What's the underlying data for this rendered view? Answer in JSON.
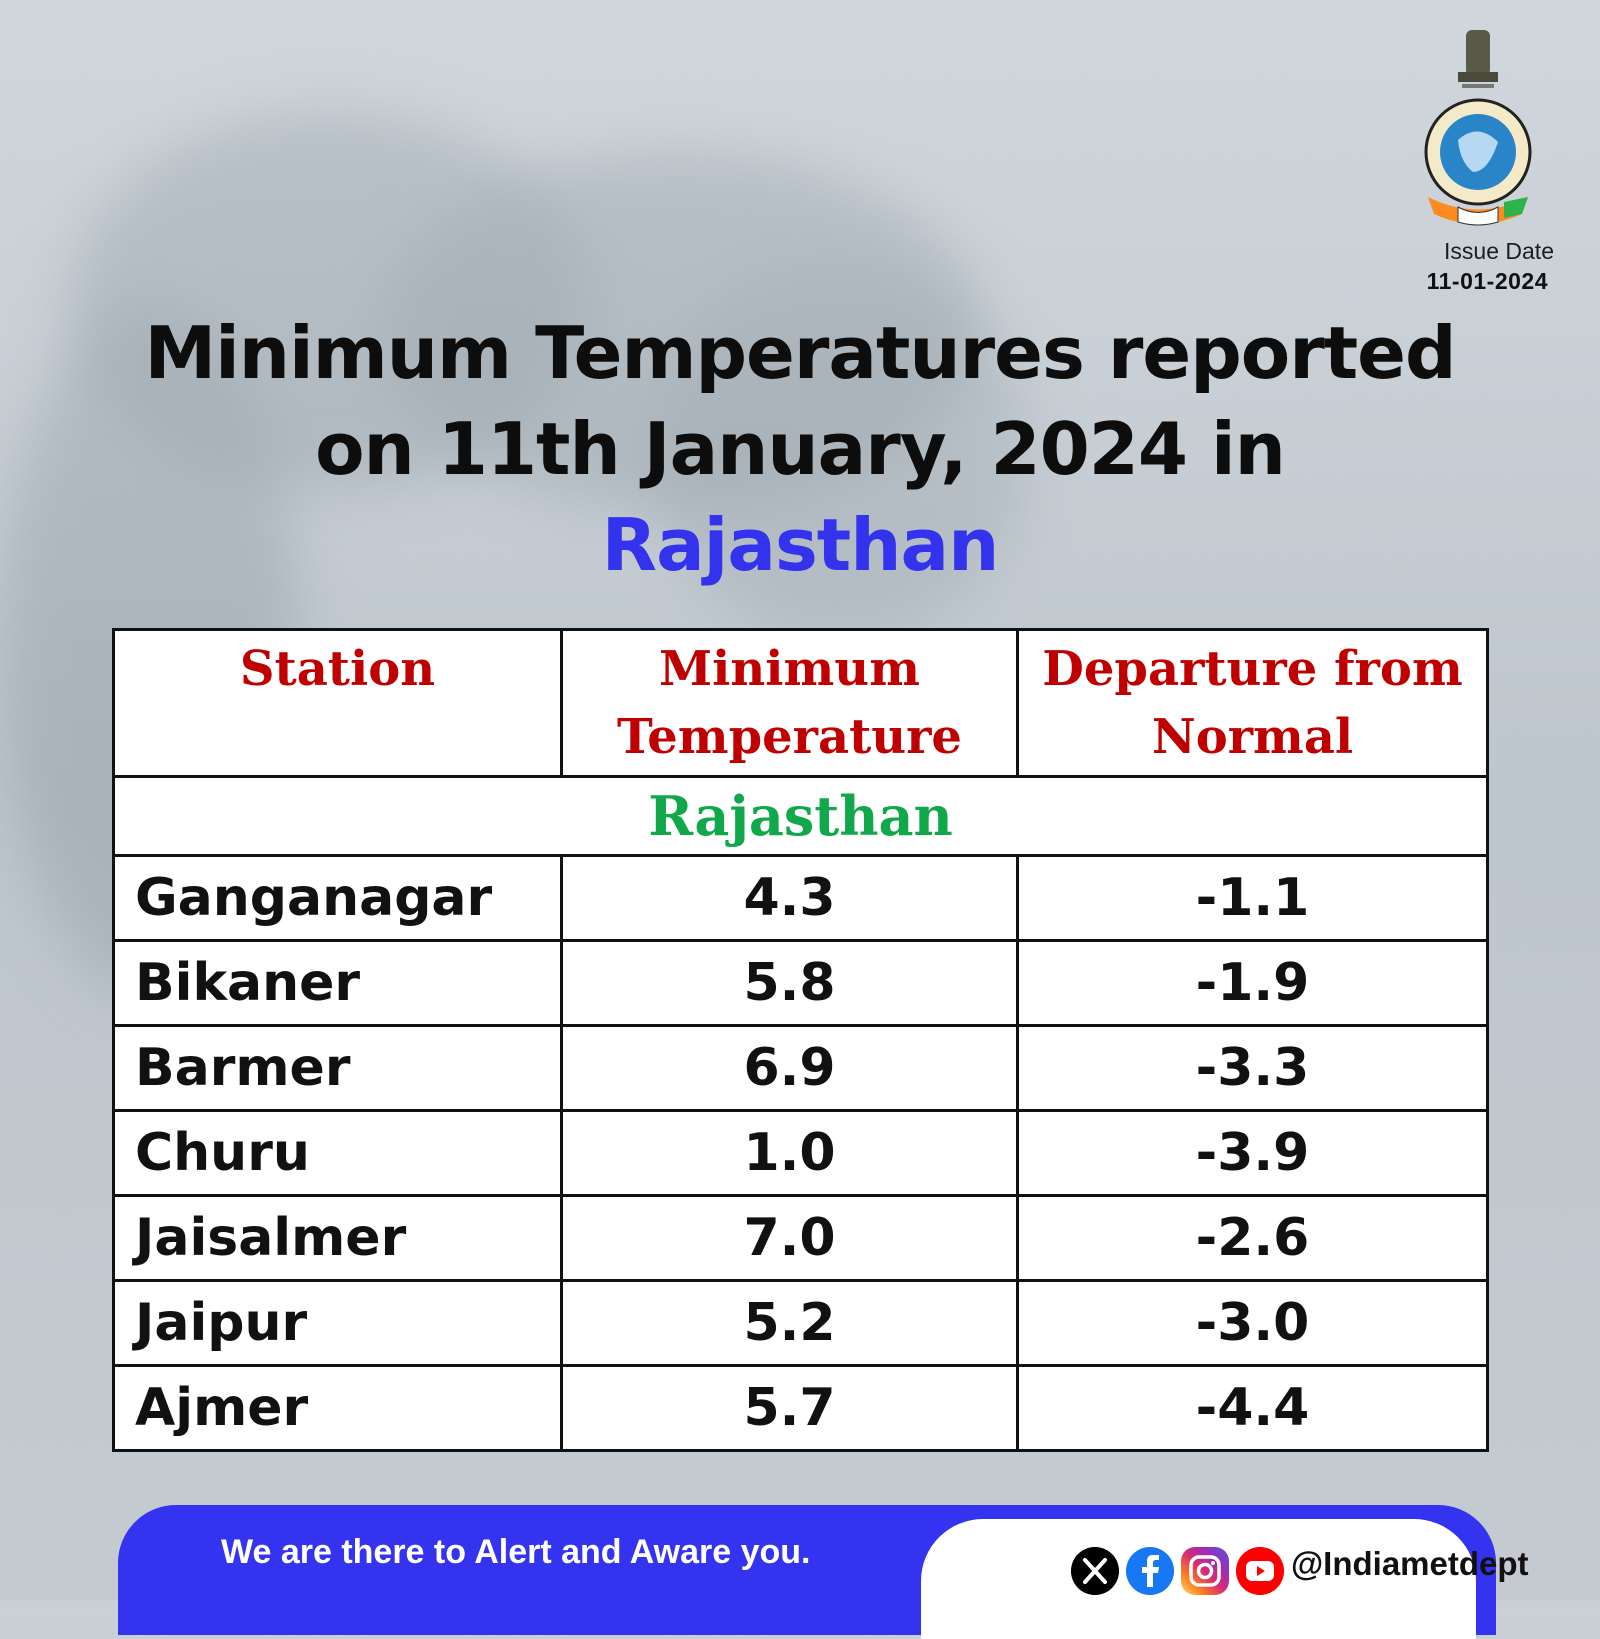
{
  "header": {
    "issue_label": "Issue Date",
    "issue_date": "11-01-2024"
  },
  "title": {
    "line1": "Minimum Temperatures reported",
    "line2": "on 11th January, 2024 in",
    "state": "Rajasthan"
  },
  "table": {
    "columns": [
      "Station",
      "Minimum Temperature",
      "Departure from Normal"
    ],
    "section": "Rajasthan",
    "rows": [
      {
        "station": "Ganganagar",
        "min_temp": "4.3",
        "departure": "-1.1"
      },
      {
        "station": "Bikaner",
        "min_temp": "5.8",
        "departure": "-1.9"
      },
      {
        "station": "Barmer",
        "min_temp": "6.9",
        "departure": "-3.3"
      },
      {
        "station": "Churu",
        "min_temp": "1.0",
        "departure": "-3.9"
      },
      {
        "station": "Jaisalmer",
        "min_temp": "7.0",
        "departure": "-2.6"
      },
      {
        "station": "Jaipur",
        "min_temp": "5.2",
        "departure": "-3.0"
      },
      {
        "station": "Ajmer",
        "min_temp": "5.7",
        "departure": "-4.4"
      }
    ]
  },
  "footer": {
    "tagline": "We are there to Alert and Aware you.",
    "handle": "@Indiametdept",
    "icons": [
      "x-icon",
      "facebook-icon",
      "instagram-icon",
      "youtube-icon"
    ]
  },
  "colors": {
    "title_accent": "#3333ee",
    "header_text": "#c00000",
    "section_text": "#11a84b",
    "footer_bg": "#3434f0"
  }
}
